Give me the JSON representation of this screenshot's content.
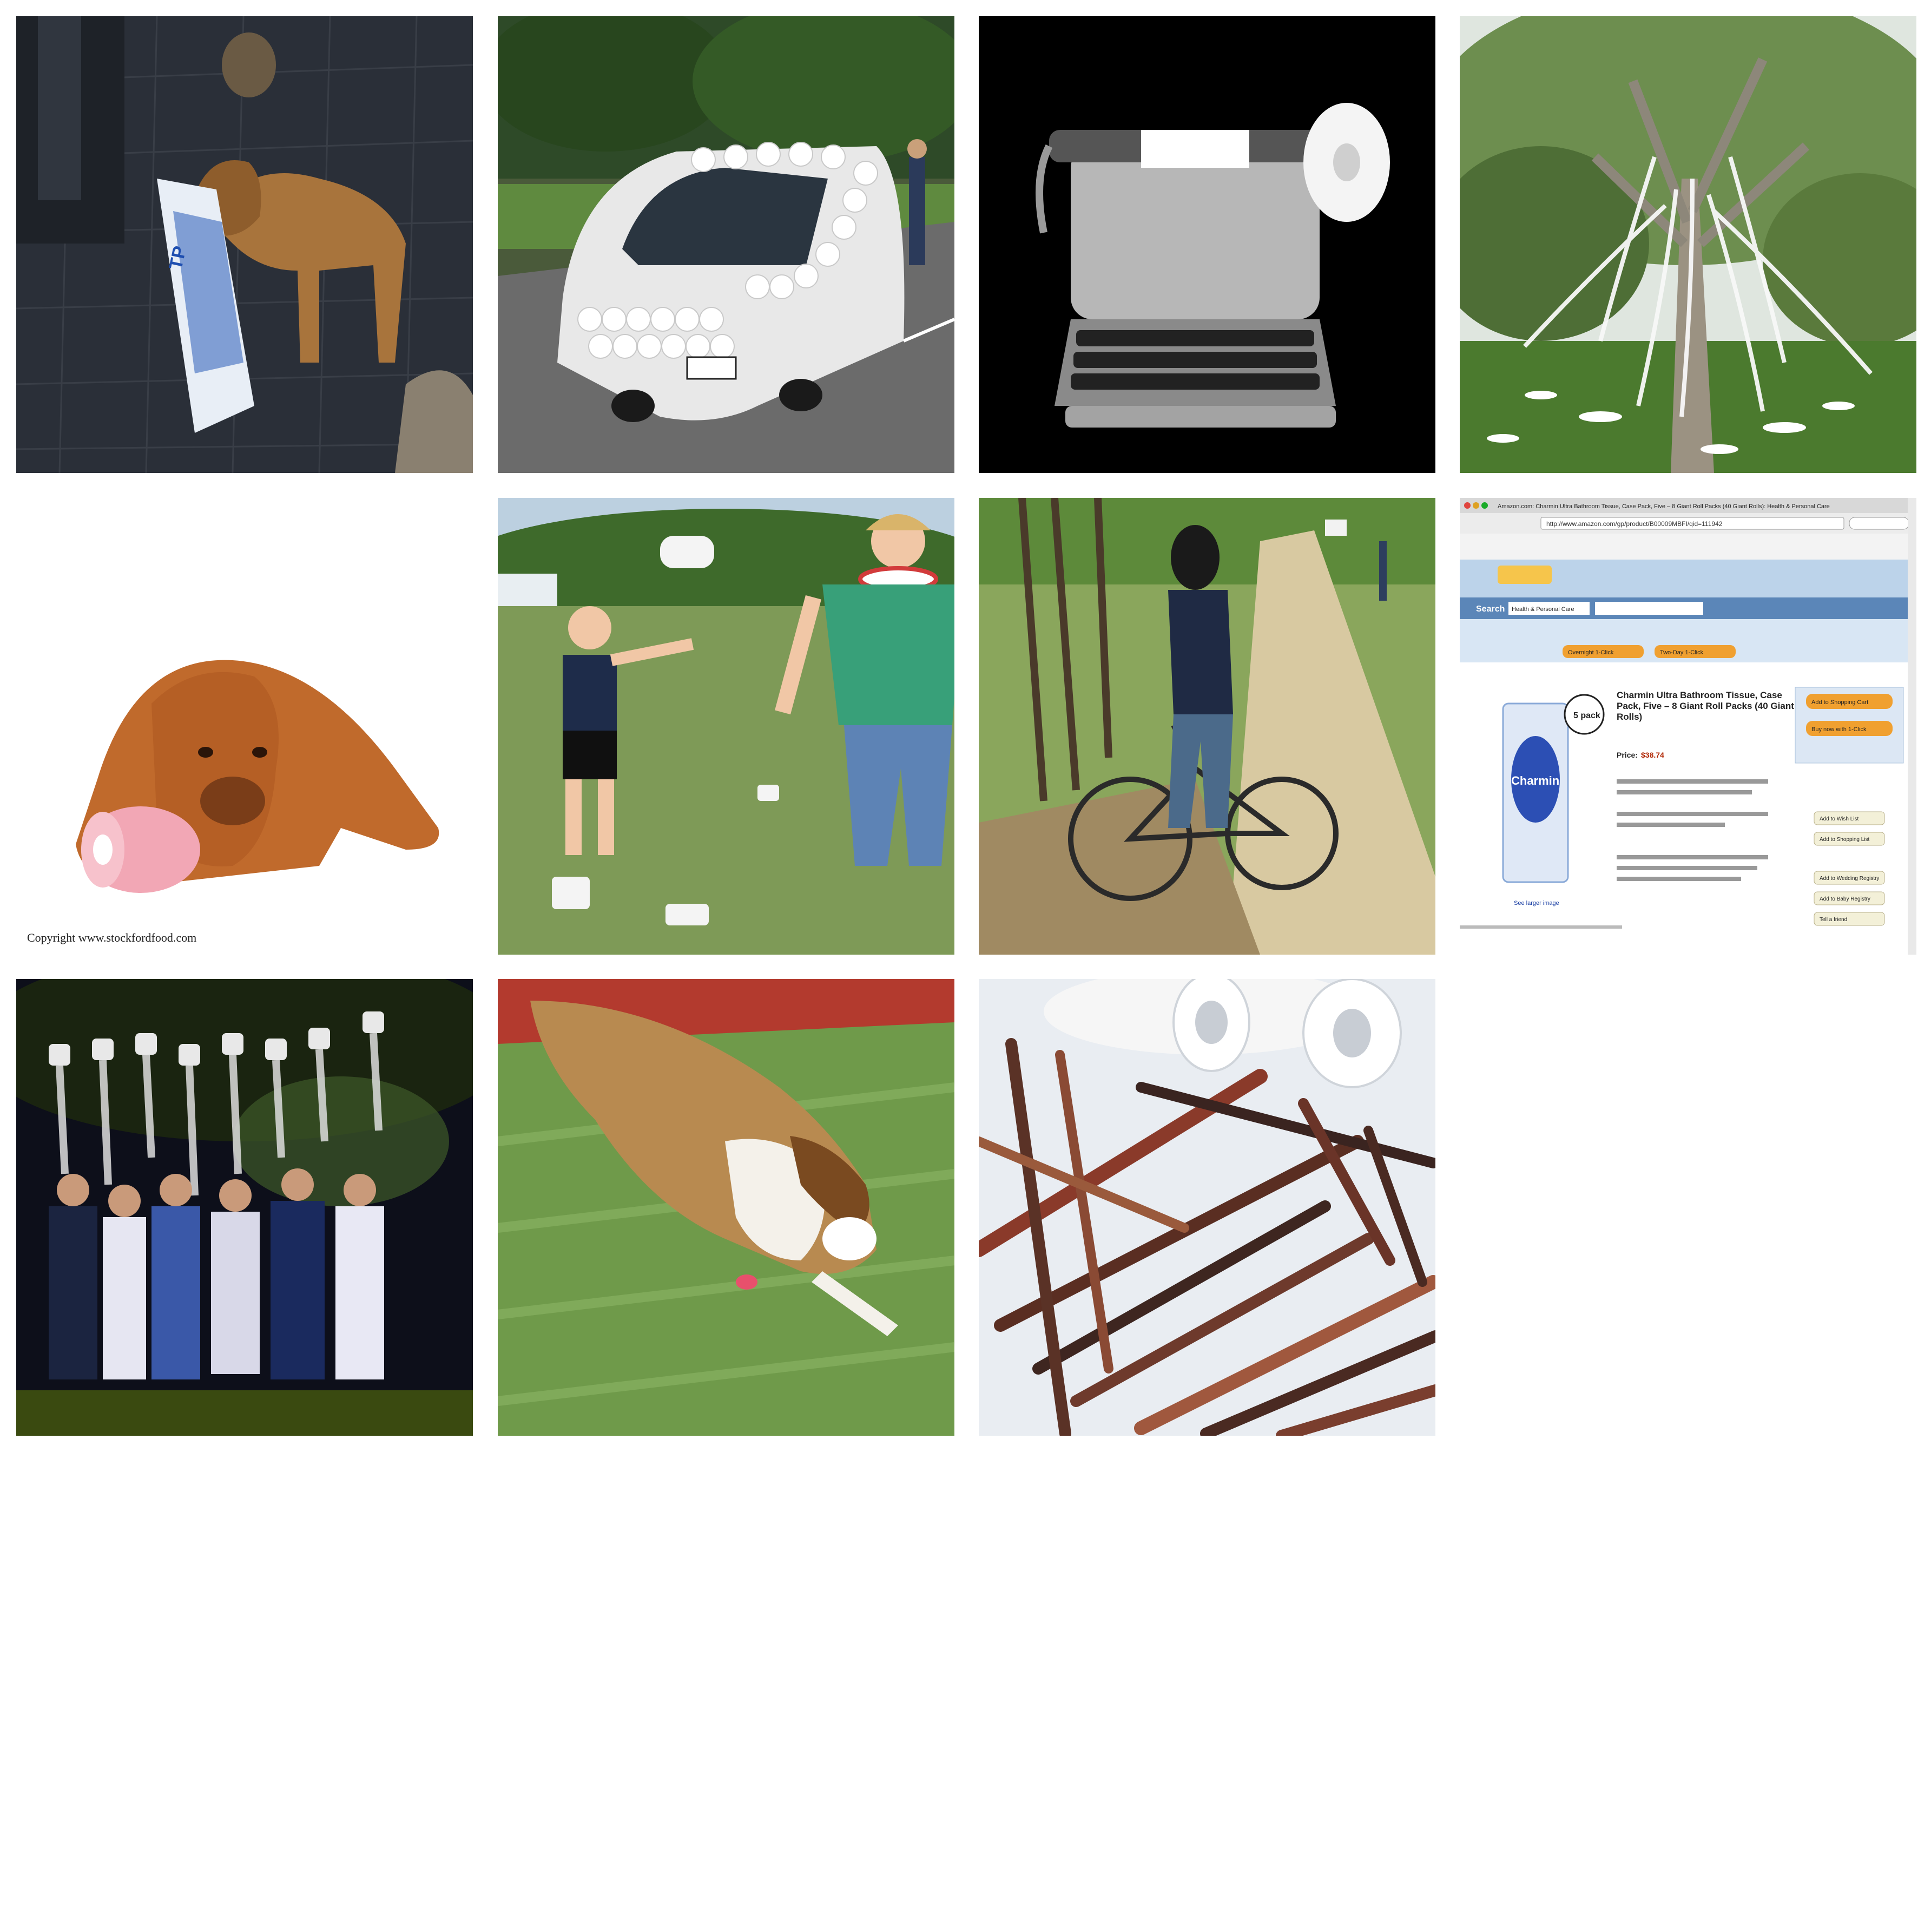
{
  "tiles": [
    {
      "id": "dog-carrying-toilet-paper-pack"
    },
    {
      "id": "van-covered-in-toilet-paper-rolls"
    },
    {
      "id": "typewriter-with-toilet-paper-roll"
    },
    {
      "id": "tree-draped-with-toilet-paper"
    },
    {
      "id": "mastiff-resting-on-pink-roll",
      "watermark": "Copyright www.stockfordfood.com"
    },
    {
      "id": "child-and-woman-tossing-rolls"
    },
    {
      "id": "man-with-bicycle-on-dirt-road"
    },
    {
      "id": "amazon-product-page-screenshot",
      "window_title": "Amazon.com: Charmin Ultra Bathroom Tissue, Case Pack, Five – 8 Giant Roll Packs (40 Giant Rolls): Health & Personal Care",
      "url": "http://www.amazon.com/gp/product/B00009MBFI/qid=111942",
      "search_label": "Search",
      "search_category": "Health & Personal Care",
      "product_title": "Charmin Ultra Bathroom Tissue, Case Pack, Five – 8 Giant Roll Packs (40 Giant Rolls)",
      "price_label": "Price:",
      "price": "$38.74",
      "pack_badge": "5 pack",
      "brand": "Charmin",
      "buttons": [
        "Add to Shopping Cart",
        "Buy now with 1-Click",
        "Add to Wish List",
        "Add to Shopping List",
        "Add to Wedding Registry",
        "Add to Baby Registry",
        "Tell a friend"
      ],
      "shipping_buttons": [
        "Overnight 1-Click",
        "Two-Day 1-Click"
      ],
      "see_larger": "See larger image"
    },
    {
      "id": "crowd-holding-toilet-paper-rolls"
    },
    {
      "id": "collie-running-with-roll"
    },
    {
      "id": "wooden-sticks-and-rolls"
    }
  ]
}
